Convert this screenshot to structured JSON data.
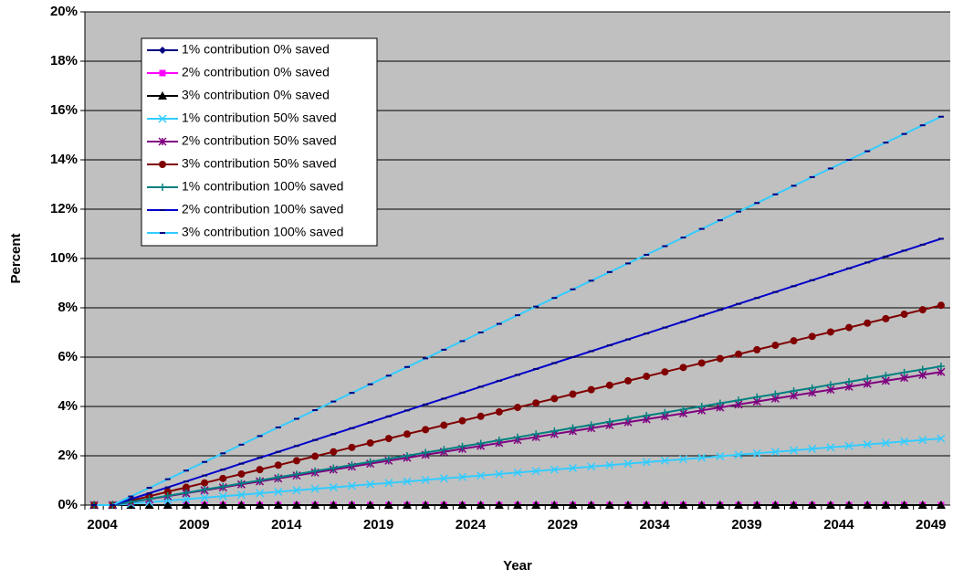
{
  "chart_data": {
    "type": "line",
    "x_label": "Year",
    "y_label": "Percent",
    "categories": [
      "2004",
      null,
      null,
      null,
      null,
      "2009",
      null,
      null,
      null,
      null,
      "2014",
      null,
      null,
      null,
      null,
      "2019",
      null,
      null,
      null,
      null,
      "2024",
      null,
      null,
      null,
      null,
      "2029",
      null,
      null,
      null,
      null,
      "2034",
      null,
      null,
      null,
      null,
      "2039",
      null,
      null,
      null,
      null,
      "2044",
      null,
      null,
      null,
      null,
      "2049",
      null
    ],
    "ylim": [
      0,
      20
    ],
    "yticks": [
      {
        "value": 0,
        "label": "0%"
      },
      {
        "value": 2,
        "label": "2%"
      },
      {
        "value": 4,
        "label": "4%"
      },
      {
        "value": 6,
        "label": "6%"
      },
      {
        "value": 8,
        "label": "8%"
      },
      {
        "value": 10,
        "label": "10%"
      },
      {
        "value": 12,
        "label": "12%"
      },
      {
        "value": 14,
        "label": "14%"
      },
      {
        "value": 16,
        "label": "16%"
      },
      {
        "value": 18,
        "label": "18%"
      },
      {
        "value": 20,
        "label": "20%"
      }
    ],
    "grid": true,
    "series": [
      {
        "name": "1% contribution 0% saved",
        "color": "#000080",
        "marker": "diamond",
        "values": [
          0,
          0,
          0,
          0,
          0,
          0,
          0,
          0,
          0,
          0,
          0,
          0,
          0,
          0,
          0,
          0,
          0,
          0,
          0,
          0,
          0,
          0,
          0,
          0,
          0,
          0,
          0,
          0,
          0,
          0,
          0,
          0,
          0,
          0,
          0,
          0,
          0,
          0,
          0,
          0,
          0,
          0,
          0,
          0,
          0,
          0,
          0
        ]
      },
      {
        "name": "2% contribution 0% saved",
        "color": "#ff00ff",
        "marker": "square",
        "values": [
          0,
          0,
          0,
          0,
          0,
          0,
          0,
          0,
          0,
          0,
          0,
          0,
          0,
          0,
          0,
          0,
          0,
          0,
          0,
          0,
          0,
          0,
          0,
          0,
          0,
          0,
          0,
          0,
          0,
          0,
          0,
          0,
          0,
          0,
          0,
          0,
          0,
          0,
          0,
          0,
          0,
          0,
          0,
          0,
          0,
          0,
          0
        ]
      },
      {
        "name": "3% contribution 0% saved",
        "color": "#000000",
        "marker": "triangle",
        "values": [
          0,
          0,
          0,
          0,
          0,
          0,
          0,
          0,
          0,
          0,
          0,
          0,
          0,
          0,
          0,
          0,
          0,
          0,
          0,
          0,
          0,
          0,
          0,
          0,
          0,
          0,
          0,
          0,
          0,
          0,
          0,
          0,
          0,
          0,
          0,
          0,
          0,
          0,
          0,
          0,
          0,
          0,
          0,
          0,
          0,
          0,
          0
        ]
      },
      {
        "name": "1% contribution 50% saved",
        "color": "#33ccff",
        "marker": "x",
        "values": [
          0,
          0,
          0.06,
          0.12,
          0.18,
          0.24,
          0.3,
          0.36,
          0.42,
          0.48,
          0.54,
          0.6,
          0.66,
          0.72,
          0.78,
          0.84,
          0.9,
          0.96,
          1.02,
          1.08,
          1.14,
          1.2,
          1.26,
          1.32,
          1.38,
          1.44,
          1.5,
          1.56,
          1.62,
          1.68,
          1.74,
          1.8,
          1.86,
          1.92,
          1.98,
          2.04,
          2.1,
          2.16,
          2.22,
          2.28,
          2.34,
          2.4,
          2.46,
          2.52,
          2.58,
          2.64,
          2.7
        ]
      },
      {
        "name": "2% contribution 50% saved",
        "color": "#800080",
        "marker": "star",
        "values": [
          0,
          0,
          0.12,
          0.24,
          0.36,
          0.48,
          0.6,
          0.72,
          0.84,
          0.96,
          1.08,
          1.2,
          1.32,
          1.44,
          1.56,
          1.68,
          1.8,
          1.92,
          2.04,
          2.16,
          2.28,
          2.4,
          2.52,
          2.64,
          2.76,
          2.88,
          3,
          3.12,
          3.24,
          3.36,
          3.48,
          3.6,
          3.72,
          3.84,
          3.96,
          4.08,
          4.2,
          4.32,
          4.44,
          4.56,
          4.68,
          4.8,
          4.92,
          5.04,
          5.16,
          5.28,
          5.4
        ]
      },
      {
        "name": "3% contribution 50% saved",
        "color": "#800000",
        "marker": "circle",
        "values": [
          0,
          0,
          0.18,
          0.36,
          0.54,
          0.72,
          0.9,
          1.08,
          1.26,
          1.44,
          1.62,
          1.8,
          1.98,
          2.16,
          2.34,
          2.52,
          2.7,
          2.88,
          3.06,
          3.24,
          3.42,
          3.6,
          3.78,
          3.96,
          4.14,
          4.32,
          4.5,
          4.68,
          4.86,
          5.04,
          5.22,
          5.4,
          5.58,
          5.76,
          5.94,
          6.12,
          6.3,
          6.48,
          6.66,
          6.84,
          7.02,
          7.2,
          7.38,
          7.56,
          7.74,
          7.92,
          8.1
        ]
      },
      {
        "name": "1% contribution 100% saved",
        "color": "#008080",
        "marker": "plus",
        "values": [
          0,
          0,
          0.13,
          0.25,
          0.38,
          0.5,
          0.63,
          0.75,
          0.88,
          1,
          1.13,
          1.25,
          1.38,
          1.5,
          1.63,
          1.75,
          1.88,
          2,
          2.13,
          2.25,
          2.38,
          2.5,
          2.63,
          2.75,
          2.88,
          3,
          3.13,
          3.25,
          3.38,
          3.5,
          3.63,
          3.75,
          3.88,
          4,
          4.13,
          4.25,
          4.38,
          4.5,
          4.63,
          4.75,
          4.88,
          5,
          5.13,
          5.25,
          5.38,
          5.5,
          5.63
        ]
      },
      {
        "name": "2% contribution 100% saved",
        "color": "#0000cc",
        "marker": "dash",
        "values": [
          0,
          0,
          0.24,
          0.48,
          0.72,
          0.96,
          1.2,
          1.44,
          1.68,
          1.92,
          2.16,
          2.4,
          2.64,
          2.88,
          3.12,
          3.36,
          3.6,
          3.84,
          4.08,
          4.32,
          4.56,
          4.8,
          5.04,
          5.28,
          5.52,
          5.76,
          6,
          6.24,
          6.48,
          6.72,
          6.96,
          7.2,
          7.44,
          7.68,
          7.92,
          8.16,
          8.4,
          8.64,
          8.88,
          9.12,
          9.36,
          9.6,
          9.84,
          10.08,
          10.32,
          10.56,
          10.8
        ]
      },
      {
        "name": "3% contribution 100% saved",
        "color": "#33ccff",
        "marker": "dash",
        "values": [
          0,
          0,
          0.35,
          0.7,
          1.05,
          1.4,
          1.75,
          2.1,
          2.45,
          2.8,
          3.15,
          3.5,
          3.85,
          4.2,
          4.55,
          4.9,
          5.25,
          5.6,
          5.95,
          6.3,
          6.65,
          7,
          7.35,
          7.7,
          8.05,
          8.4,
          8.75,
          9.1,
          9.45,
          9.8,
          10.15,
          10.5,
          10.85,
          11.2,
          11.55,
          11.9,
          12.25,
          12.6,
          12.95,
          13.3,
          13.65,
          14,
          14.35,
          14.7,
          15.05,
          15.4,
          15.75
        ]
      }
    ]
  }
}
